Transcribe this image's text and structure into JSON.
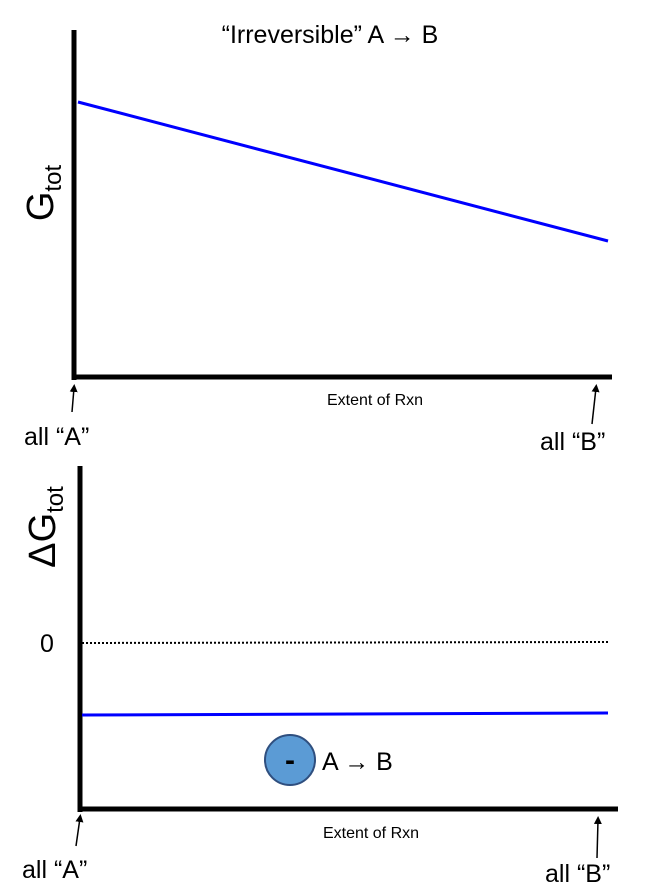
{
  "top_panel": {
    "title": "“Irreversible” A → B",
    "y_label_main": "G",
    "y_label_sub": "tot",
    "x_label": "Extent of Rxn",
    "left_endpoint_label": "all “A”",
    "right_endpoint_label": "all “B”",
    "line_color": "#0000ff"
  },
  "bottom_panel": {
    "y_label_main": "ΔG",
    "y_label_sub": "tot",
    "zero_label": "0",
    "x_label": "Extent of Rxn",
    "left_endpoint_label": "all “A”",
    "right_endpoint_label": "all “B”",
    "sign_badge_text": "-",
    "sign_badge_color": "#5b9bd5",
    "reaction_text": "A → B",
    "line_color": "#0000ff"
  }
}
